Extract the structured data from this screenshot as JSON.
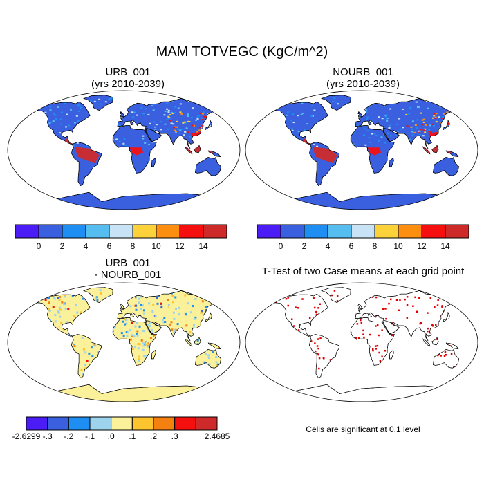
{
  "title": "MAM TOTVEGC (KgC/m^2)",
  "panels": [
    {
      "title_line1": "URB_001",
      "title_line2": "(yrs 2010-2039)"
    },
    {
      "title_line1": "NOURB_001",
      "title_line2": "(yrs 2010-2039)"
    },
    {
      "title_line1": "URB_001",
      "title_line2": "- NOURB_001"
    },
    {
      "title_line1": "T-Test of two Case means at each grid point",
      "title_line2": ""
    }
  ],
  "colorbar_abs": {
    "colors": [
      "#4b1cf5",
      "#3a60e0",
      "#1f8ef2",
      "#55bdf0",
      "#c8e3f5",
      "#fcd23a",
      "#fc8f10",
      "#f50f0f",
      "#cf2a2a"
    ],
    "labels": [
      "0",
      "2",
      "4",
      "6",
      "8",
      "10",
      "12",
      "14"
    ]
  },
  "colorbar_diff": {
    "colors": [
      "#4b1cf5",
      "#3a60e0",
      "#1f8ef2",
      "#9ed3ee",
      "#fbf19a",
      "#fcc42e",
      "#f4810f",
      "#f50f0f",
      "#cf2a2a"
    ],
    "labels": [
      "-2.6299",
      "-.3",
      "-.2",
      "-.1",
      ".0",
      ".1",
      ".2",
      ".3",
      "2.4685"
    ]
  },
  "significance_note": "Cells are significant at 0.1 level",
  "map_colors": {
    "ocean": "#ffffff",
    "coast": "#000000",
    "land_abs": "#3a60e0",
    "land_diff": "#fbf19a",
    "significant": "#e00000"
  }
}
